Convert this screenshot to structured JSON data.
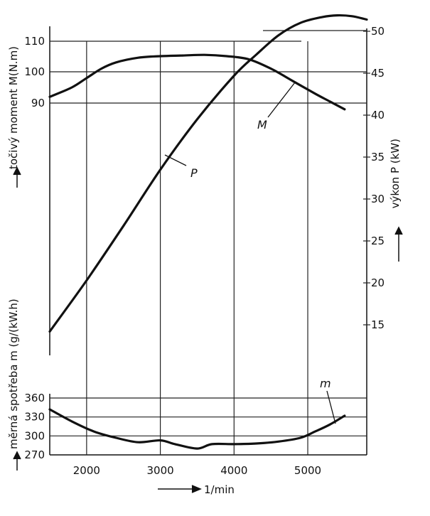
{
  "chart_data": {
    "type": "line",
    "x_axis": {
      "label": "1/min",
      "range": [
        1500,
        5800
      ],
      "ticks": [
        2000,
        3000,
        4000,
        5000
      ],
      "tick_labels": [
        "2000",
        "3000",
        "4000",
        "5000"
      ]
    },
    "torque_axis": {
      "label": "točivý moment M(N.m)",
      "ticks": [
        90,
        100,
        110
      ],
      "tick_labels": [
        "90",
        "100",
        "110"
      ]
    },
    "power_axis": {
      "label": "výkon P (kW)",
      "ticks": [
        15,
        20,
        25,
        30,
        35,
        40,
        45,
        50
      ],
      "tick_labels": [
        "15",
        "20",
        "25",
        "30",
        "35",
        "40",
        "45",
        "50"
      ]
    },
    "consumption_axis": {
      "label": "měrná spotřeba m (g/(kW.h)",
      "ticks": [
        270,
        300,
        330,
        360
      ],
      "tick_labels": [
        "270",
        "300",
        "330",
        "360"
      ]
    },
    "grid": true,
    "series": [
      {
        "name": "M",
        "axis": "torque",
        "x": [
          1500,
          1800,
          2000,
          2200,
          2400,
          2700,
          3000,
          3300,
          3600,
          3900,
          4200,
          4500,
          4800,
          5100,
          5300,
          5500
        ],
        "y": [
          92,
          95,
          98,
          101,
          103,
          104.5,
          105,
          105.2,
          105.4,
          105,
          104,
          101,
          97,
          93,
          90.5,
          88
        ]
      },
      {
        "name": "P",
        "axis": "power",
        "x": [
          1500,
          2000,
          2500,
          3000,
          3500,
          4000,
          4300,
          4600,
          4900,
          5200,
          5400,
          5600,
          5800
        ],
        "y": [
          14.2,
          20.3,
          26.8,
          33.5,
          39.5,
          44.7,
          47.2,
          49.5,
          51,
          51.7,
          51.9,
          51.8,
          51.4
        ]
      },
      {
        "name": "m",
        "axis": "consumption",
        "x": [
          1500,
          1800,
          2100,
          2400,
          2700,
          3000,
          3200,
          3500,
          3700,
          4000,
          4300,
          4600,
          4900,
          5100,
          5300,
          5500
        ],
        "y": [
          342,
          323,
          307,
          297,
          290,
          293,
          287,
          280,
          287,
          287,
          288,
          291,
          297,
          307,
          318,
          332
        ]
      }
    ]
  }
}
